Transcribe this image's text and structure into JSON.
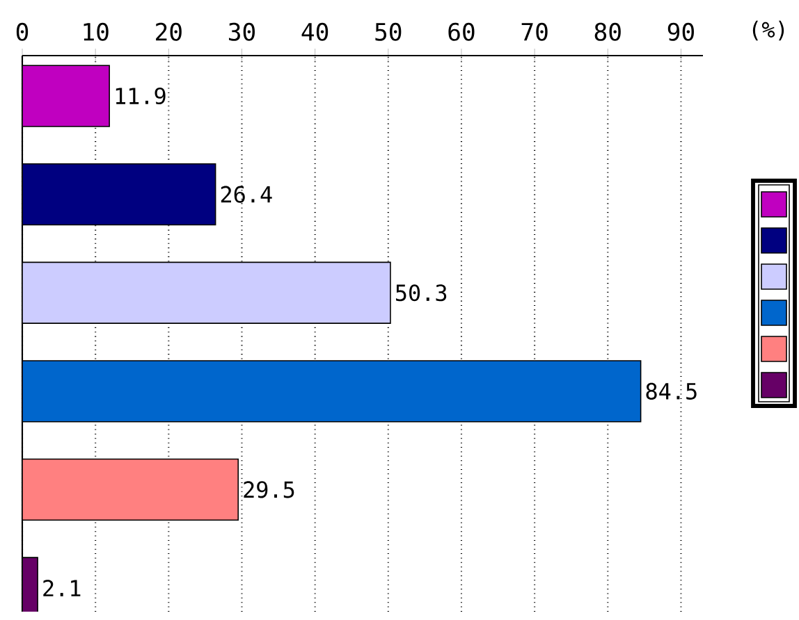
{
  "chart_data": {
    "type": "bar",
    "orientation": "horizontal",
    "categories": [
      null,
      null,
      null,
      null,
      null,
      null
    ],
    "values": [
      11.9,
      26.4,
      50.3,
      84.5,
      29.5,
      2.1
    ],
    "colors": [
      "#c000c0",
      "#000080",
      "#ccccff",
      "#0066cc",
      "#ff8080",
      "#660066"
    ],
    "xlim": [
      0,
      93
    ],
    "xticks": [
      0,
      10,
      20,
      30,
      40,
      50,
      60,
      70,
      80,
      90
    ],
    "grid": "x",
    "data_labels": true,
    "annotations": [
      "(%)"
    ]
  }
}
